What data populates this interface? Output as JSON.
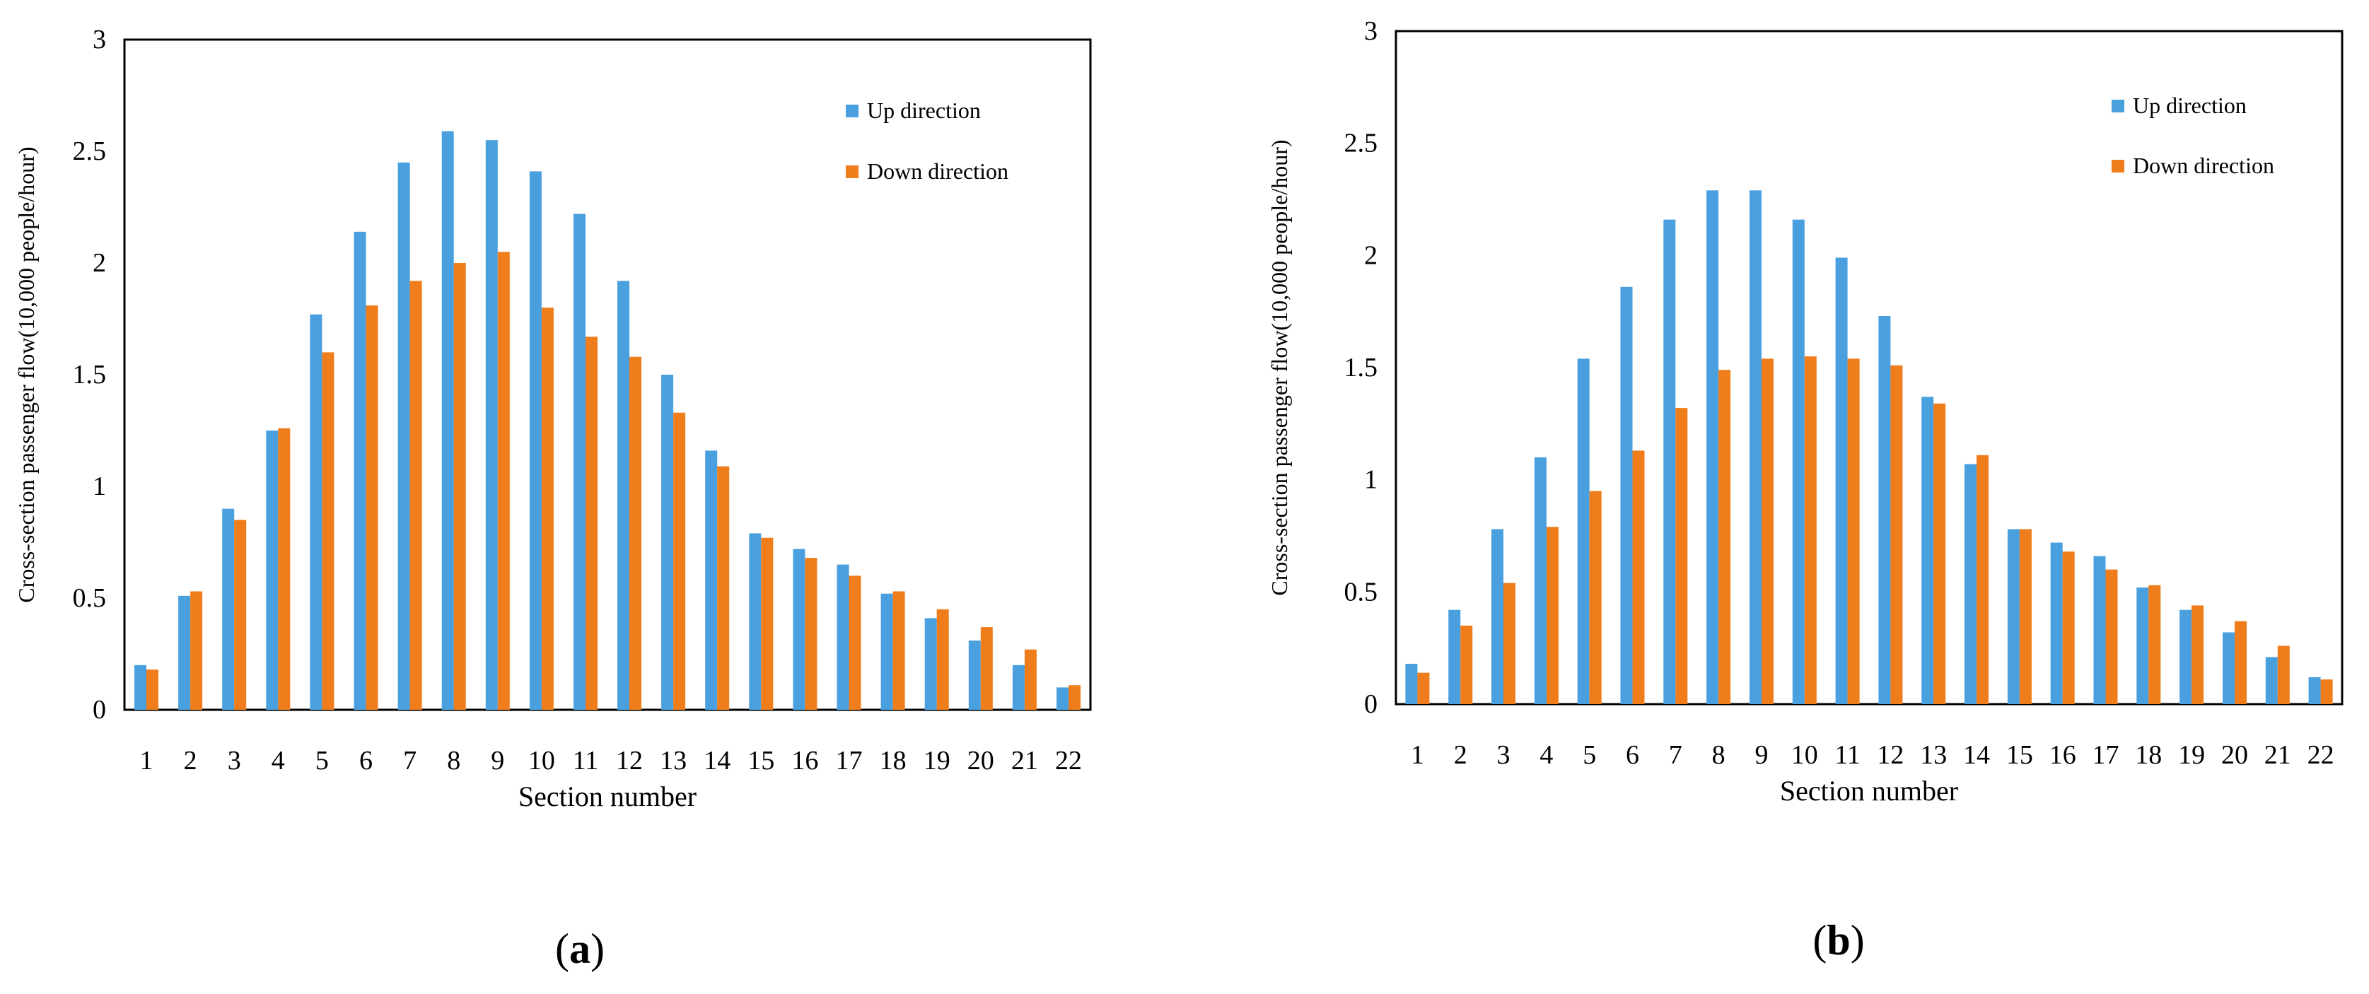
{
  "colors": {
    "up": "#4a9fdf",
    "down": "#f07d1b",
    "axis": "#000000",
    "frame": "#000000"
  },
  "chart_data": [
    {
      "type": "bar",
      "panel": "a",
      "panel_label": {
        "open": "(",
        "letter": "a",
        "close": ")"
      },
      "categories": [
        "1",
        "2",
        "3",
        "4",
        "5",
        "6",
        "7",
        "8",
        "9",
        "10",
        "11",
        "12",
        "13",
        "14",
        "15",
        "16",
        "17",
        "18",
        "19",
        "20",
        "21",
        "22"
      ],
      "series": [
        {
          "name": "Up direction",
          "values": [
            0.2,
            0.51,
            0.9,
            1.25,
            1.77,
            2.14,
            2.45,
            2.59,
            2.55,
            2.41,
            2.22,
            1.92,
            1.5,
            1.16,
            0.79,
            0.72,
            0.65,
            0.52,
            0.41,
            0.31,
            0.2,
            0.1
          ]
        },
        {
          "name": "Down direction",
          "values": [
            0.18,
            0.53,
            0.85,
            1.26,
            1.6,
            1.81,
            1.92,
            2.0,
            2.05,
            1.8,
            1.67,
            1.58,
            1.33,
            1.09,
            0.77,
            0.68,
            0.6,
            0.53,
            0.45,
            0.37,
            0.27,
            0.11
          ]
        }
      ],
      "title": "",
      "xlabel": "Section number",
      "ylabel": "Cross-section passenger flow(10,000 people/hour)",
      "ylim": [
        0,
        3
      ],
      "yticks": [
        "0",
        "0.5",
        "1",
        "1.5",
        "2",
        "2.5",
        "3"
      ],
      "legend": "top-right"
    },
    {
      "type": "bar",
      "panel": "b",
      "panel_label": {
        "open": "(",
        "letter": "b",
        "close": ")"
      },
      "categories": [
        "1",
        "2",
        "3",
        "4",
        "5",
        "6",
        "7",
        "8",
        "9",
        "10",
        "11",
        "12",
        "13",
        "14",
        "15",
        "16",
        "17",
        "18",
        "19",
        "20",
        "21",
        "22"
      ],
      "series": [
        {
          "name": "Up direction",
          "values": [
            0.18,
            0.42,
            0.78,
            1.1,
            1.54,
            1.86,
            2.16,
            2.29,
            2.29,
            2.16,
            1.99,
            1.73,
            1.37,
            1.07,
            0.78,
            0.72,
            0.66,
            0.52,
            0.42,
            0.32,
            0.21,
            0.12
          ]
        },
        {
          "name": "Down direction",
          "values": [
            0.14,
            0.35,
            0.54,
            0.79,
            0.95,
            1.13,
            1.32,
            1.49,
            1.54,
            1.55,
            1.54,
            1.51,
            1.34,
            1.11,
            0.78,
            0.68,
            0.6,
            0.53,
            0.44,
            0.37,
            0.26,
            0.11
          ]
        }
      ],
      "title": "",
      "xlabel": "Section number",
      "ylabel": "Cross-section passenger flow(10,000 people/hour)",
      "ylim": [
        0,
        3
      ],
      "yticks": [
        "0",
        "0.5",
        "1",
        "1.5",
        "2",
        "2.5",
        "3"
      ],
      "legend": "top-right"
    }
  ]
}
